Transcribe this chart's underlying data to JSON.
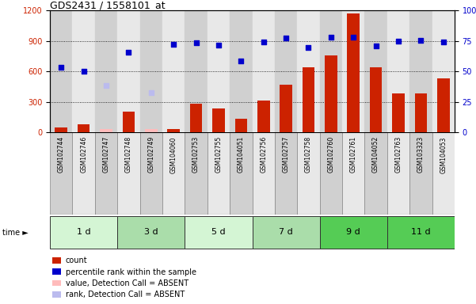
{
  "title": "GDS2431 / 1558101_at",
  "samples": [
    "GSM102744",
    "GSM102746",
    "GSM102747",
    "GSM102748",
    "GSM102749",
    "GSM104060",
    "GSM102753",
    "GSM102755",
    "GSM104051",
    "GSM102756",
    "GSM102757",
    "GSM102758",
    "GSM102760",
    "GSM102761",
    "GSM104052",
    "GSM102763",
    "GSM103323",
    "GSM104053"
  ],
  "count_values": [
    50,
    80,
    28,
    200,
    28,
    30,
    285,
    235,
    130,
    310,
    470,
    640,
    760,
    1170,
    640,
    385,
    385,
    530
  ],
  "count_absent": [
    false,
    false,
    true,
    false,
    true,
    false,
    false,
    false,
    false,
    false,
    false,
    false,
    false,
    false,
    false,
    false,
    false,
    false
  ],
  "percentile_values": [
    640,
    600,
    460,
    790,
    390,
    870,
    880,
    860,
    700,
    890,
    930,
    840,
    940,
    940,
    850,
    900,
    910,
    890
  ],
  "percentile_absent": [
    false,
    false,
    true,
    false,
    true,
    false,
    false,
    false,
    false,
    false,
    false,
    false,
    false,
    false,
    false,
    false,
    false,
    false
  ],
  "time_groups": [
    {
      "label": "1 d",
      "start": 0,
      "end": 3,
      "color": "#d4f5d4"
    },
    {
      "label": "3 d",
      "start": 3,
      "end": 6,
      "color": "#aaddaa"
    },
    {
      "label": "5 d",
      "start": 6,
      "end": 9,
      "color": "#d4f5d4"
    },
    {
      "label": "7 d",
      "start": 9,
      "end": 12,
      "color": "#aaddaa"
    },
    {
      "label": "9 d",
      "start": 12,
      "end": 15,
      "color": "#55cc55"
    },
    {
      "label": "11 d",
      "start": 15,
      "end": 18,
      "color": "#55cc55"
    }
  ],
  "left_ylim": [
    0,
    1200
  ],
  "left_yticks": [
    0,
    300,
    600,
    900,
    1200
  ],
  "right_ylim": [
    0,
    100
  ],
  "right_yticks": [
    0,
    25,
    50,
    75,
    100
  ],
  "bar_color": "#cc2200",
  "bar_absent_color": "#ffbbbb",
  "dot_color": "#0000cc",
  "dot_absent_color": "#bbbbee",
  "col_even_color": "#d0d0d0",
  "col_odd_color": "#e8e8e8",
  "bar_width": 0.55,
  "legend_items": [
    {
      "label": "count",
      "color": "#cc2200"
    },
    {
      "label": "percentile rank within the sample",
      "color": "#0000cc"
    },
    {
      "label": "value, Detection Call = ABSENT",
      "color": "#ffbbbb"
    },
    {
      "label": "rank, Detection Call = ABSENT",
      "color": "#bbbbee"
    }
  ]
}
